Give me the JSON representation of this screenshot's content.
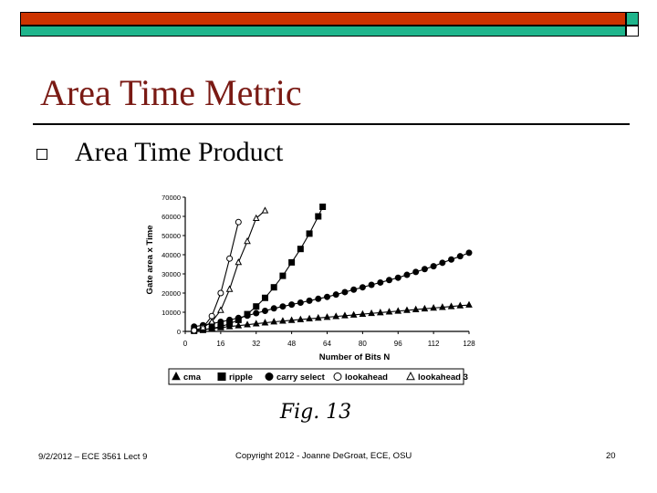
{
  "slide": {
    "title": "Area Time Metric",
    "bullet": "Area Time Product",
    "figure_caption": "Fig. 13",
    "colors": {
      "header_red": "#cc3300",
      "header_green": "#1fb58c",
      "title": "#7a1a14"
    }
  },
  "footer": {
    "left": "9/2/2012 – ECE 3561 Lect 9",
    "center": "Copyright 2012 - Joanne DeGroat, ECE, OSU",
    "page": "20"
  },
  "chart_data": {
    "type": "line",
    "xlabel": "Number of Bits N",
    "ylabel": "Gate area x Time",
    "xlim": [
      0,
      128
    ],
    "ylim": [
      0,
      70000
    ],
    "xticks": [
      0,
      16,
      32,
      48,
      64,
      80,
      96,
      112,
      128
    ],
    "yticks": [
      0,
      10000,
      20000,
      30000,
      40000,
      50000,
      60000,
      70000
    ],
    "legend_position": "bottom",
    "series": [
      {
        "name": "cma",
        "marker": "filled-triangle",
        "x": [
          4,
          8,
          12,
          16,
          20,
          24,
          28,
          32,
          36,
          40,
          44,
          48,
          52,
          56,
          60,
          64,
          68,
          72,
          76,
          80,
          84,
          88,
          92,
          96,
          100,
          104,
          108,
          112,
          116,
          120,
          124,
          128
        ],
        "y": [
          500,
          1000,
          1500,
          2000,
          2500,
          3000,
          3500,
          4000,
          4500,
          5000,
          5400,
          5800,
          6200,
          6600,
          7000,
          7400,
          7800,
          8200,
          8600,
          9000,
          9400,
          9800,
          10200,
          10600,
          11000,
          11400,
          11800,
          12200,
          12600,
          13000,
          13400,
          13800
        ]
      },
      {
        "name": "ripple",
        "marker": "filled-square",
        "x": [
          4,
          8,
          12,
          16,
          20,
          24,
          28,
          32,
          36,
          40,
          44,
          48,
          52,
          56,
          60,
          62
        ],
        "y": [
          300,
          800,
          1500,
          2500,
          4000,
          6000,
          9000,
          13000,
          17500,
          23000,
          29000,
          36000,
          43000,
          51000,
          60000,
          65000
        ]
      },
      {
        "name": "carry select",
        "marker": "filled-circle",
        "x": [
          4,
          8,
          12,
          16,
          20,
          24,
          28,
          32,
          36,
          40,
          44,
          48,
          52,
          56,
          60,
          64,
          68,
          72,
          76,
          80,
          84,
          88,
          92,
          96,
          100,
          104,
          108,
          112,
          116,
          120,
          124,
          128
        ],
        "y": [
          2500,
          3200,
          4000,
          5000,
          6000,
          7000,
          8200,
          9500,
          10700,
          12000,
          13000,
          14000,
          15000,
          16000,
          17000,
          18000,
          19200,
          20500,
          21800,
          23000,
          24300,
          25500,
          26800,
          28000,
          29500,
          31000,
          32500,
          34000,
          35800,
          37500,
          39200,
          41000
        ]
      },
      {
        "name": "lookahead",
        "marker": "open-circle",
        "x": [
          4,
          8,
          12,
          16,
          20,
          24
        ],
        "y": [
          500,
          2000,
          8000,
          20000,
          38000,
          57000
        ]
      },
      {
        "name": "lookahead 3",
        "marker": "open-triangle",
        "x": [
          8,
          12,
          16,
          20,
          24,
          28,
          32,
          36
        ],
        "y": [
          2000,
          5000,
          11000,
          22000,
          36000,
          47000,
          59000,
          63000
        ]
      }
    ]
  }
}
